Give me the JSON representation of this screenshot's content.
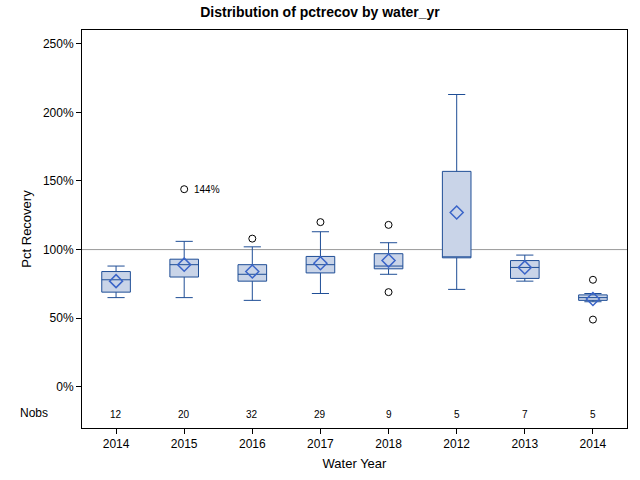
{
  "chart_data": {
    "type": "box",
    "title": "Distribution of pctrecov by water_yr",
    "x_label": "Water Year",
    "y_label": "Pct Recovery",
    "categories": [
      "2014",
      "2015",
      "2016",
      "2017",
      "2018",
      "2012",
      "2013",
      "2014"
    ],
    "lower": [
      65,
      65,
      63,
      68,
      82,
      71,
      77,
      62
    ],
    "q1": [
      69,
      80,
      77,
      83,
      86,
      94,
      79,
      63
    ],
    "median": [
      78,
      89,
      82,
      89,
      88,
      94,
      87,
      65
    ],
    "q3": [
      84,
      93,
      89,
      95,
      97,
      157,
      92,
      67
    ],
    "upper": [
      88,
      106,
      102,
      113,
      105,
      213,
      96,
      68
    ],
    "mean": [
      77,
      89,
      84,
      90,
      92,
      127,
      87,
      64
    ],
    "outliers": [
      [],
      [
        144
      ],
      [
        108
      ],
      [
        120
      ],
      [
        118,
        69
      ],
      [],
      [],
      [
        78,
        49
      ]
    ],
    "nobs_label": "Nobs",
    "nobs": [
      12,
      20,
      32,
      29,
      9,
      5,
      7,
      5
    ],
    "annotations": [
      {
        "text": "144%",
        "x": 1,
        "y": 144
      }
    ],
    "reference_line": 100,
    "color": "#1f4e96",
    "ylim": [
      -30,
      260
    ],
    "yticks": [
      {
        "value": 0,
        "label": "0%"
      },
      {
        "value": 50,
        "label": "50%"
      },
      {
        "value": 100,
        "label": "100%"
      },
      {
        "value": 150,
        "label": "150%"
      },
      {
        "value": 200,
        "label": "200%"
      },
      {
        "value": 250,
        "label": "250%"
      }
    ],
    "grid": false
  }
}
